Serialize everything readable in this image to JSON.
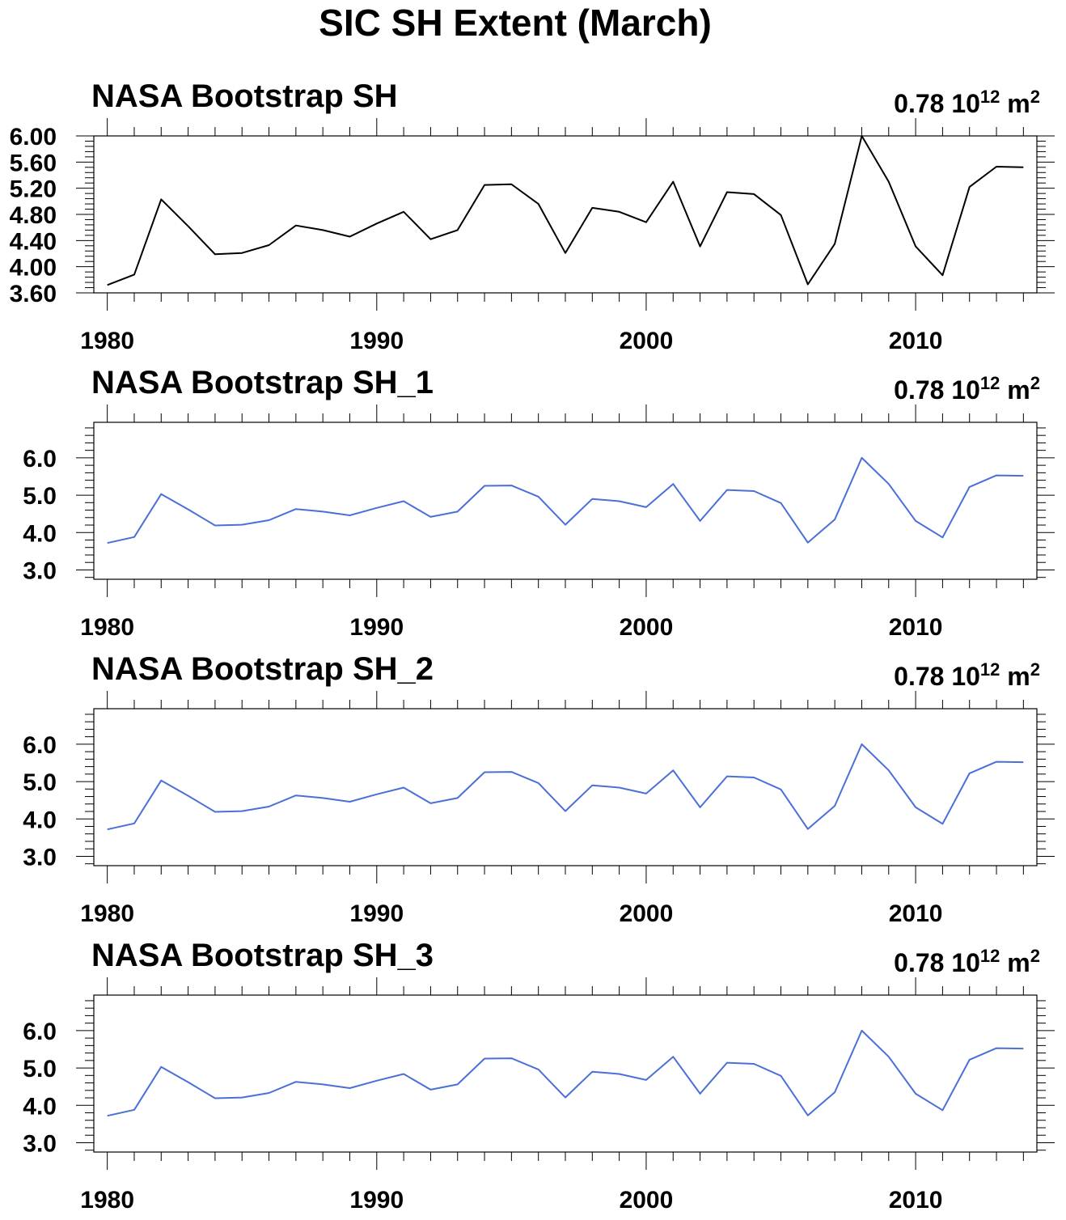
{
  "figure": {
    "title": "SIC SH Extent (March)"
  },
  "chart_data": [
    {
      "type": "line",
      "title": "NASA Bootstrap SH",
      "annotation": {
        "value": "0.78 10",
        "exponent": "12",
        "unit": "m",
        "unit_exponent": "2"
      },
      "xlabel": "",
      "ylabel": "",
      "xlim": [
        1979.5,
        2014.5
      ],
      "ylim": [
        3.6,
        6.0
      ],
      "yticks": [
        "6.00",
        "5.60",
        "5.20",
        "4.80",
        "4.40",
        "4.00",
        "3.60"
      ],
      "xticks": [
        "1980",
        "1990",
        "2000",
        "2010"
      ],
      "grid": false,
      "color": "#000000",
      "x": [
        1980,
        1981,
        1982,
        1983,
        1984,
        1985,
        1986,
        1987,
        1988,
        1989,
        1990,
        1991,
        1992,
        1993,
        1994,
        1995,
        1996,
        1997,
        1998,
        1999,
        2000,
        2001,
        2002,
        2003,
        2004,
        2005,
        2006,
        2007,
        2008,
        2009,
        2010,
        2011,
        2012,
        2013,
        2014
      ],
      "values": [
        3.72,
        3.88,
        5.03,
        4.62,
        4.19,
        4.21,
        4.33,
        4.63,
        4.56,
        4.46,
        4.66,
        4.84,
        4.42,
        4.56,
        5.25,
        5.26,
        4.96,
        4.21,
        4.9,
        4.84,
        4.68,
        5.3,
        4.31,
        5.14,
        5.11,
        4.79,
        3.73,
        4.35,
        6.0,
        5.3,
        4.31,
        3.87,
        5.22,
        5.53,
        5.52
      ]
    },
    {
      "type": "line",
      "title": "NASA Bootstrap SH_1",
      "annotation": {
        "value": "0.78 10",
        "exponent": "12",
        "unit": "m",
        "unit_exponent": "2"
      },
      "xlabel": "",
      "ylabel": "",
      "xlim": [
        1979.5,
        2014.5
      ],
      "ylim": [
        2.75,
        6.95
      ],
      "yticks": [
        "6.0",
        "5.0",
        "4.0",
        "3.0"
      ],
      "xticks": [
        "1980",
        "1990",
        "2000",
        "2010"
      ],
      "grid": false,
      "color": "#4a6fd8",
      "x": [
        1980,
        1981,
        1982,
        1983,
        1984,
        1985,
        1986,
        1987,
        1988,
        1989,
        1990,
        1991,
        1992,
        1993,
        1994,
        1995,
        1996,
        1997,
        1998,
        1999,
        2000,
        2001,
        2002,
        2003,
        2004,
        2005,
        2006,
        2007,
        2008,
        2009,
        2010,
        2011,
        2012,
        2013,
        2014
      ],
      "values": [
        3.72,
        3.88,
        5.03,
        4.62,
        4.19,
        4.21,
        4.33,
        4.63,
        4.56,
        4.46,
        4.66,
        4.84,
        4.42,
        4.56,
        5.25,
        5.26,
        4.96,
        4.21,
        4.9,
        4.84,
        4.68,
        5.3,
        4.31,
        5.14,
        5.11,
        4.79,
        3.73,
        4.35,
        6.0,
        5.3,
        4.31,
        3.87,
        5.22,
        5.53,
        5.52
      ]
    },
    {
      "type": "line",
      "title": "NASA Bootstrap SH_2",
      "annotation": {
        "value": "0.78 10",
        "exponent": "12",
        "unit": "m",
        "unit_exponent": "2"
      },
      "xlabel": "",
      "ylabel": "",
      "xlim": [
        1979.5,
        2014.5
      ],
      "ylim": [
        2.75,
        6.95
      ],
      "yticks": [
        "6.0",
        "5.0",
        "4.0",
        "3.0"
      ],
      "xticks": [
        "1980",
        "1990",
        "2000",
        "2010"
      ],
      "grid": false,
      "color": "#4a6fd8",
      "x": [
        1980,
        1981,
        1982,
        1983,
        1984,
        1985,
        1986,
        1987,
        1988,
        1989,
        1990,
        1991,
        1992,
        1993,
        1994,
        1995,
        1996,
        1997,
        1998,
        1999,
        2000,
        2001,
        2002,
        2003,
        2004,
        2005,
        2006,
        2007,
        2008,
        2009,
        2010,
        2011,
        2012,
        2013,
        2014
      ],
      "values": [
        3.72,
        3.88,
        5.03,
        4.62,
        4.19,
        4.21,
        4.33,
        4.63,
        4.56,
        4.46,
        4.66,
        4.84,
        4.42,
        4.56,
        5.25,
        5.26,
        4.96,
        4.21,
        4.9,
        4.84,
        4.68,
        5.3,
        4.31,
        5.14,
        5.11,
        4.79,
        3.73,
        4.35,
        6.0,
        5.3,
        4.31,
        3.87,
        5.22,
        5.53,
        5.52
      ]
    },
    {
      "type": "line",
      "title": "NASA Bootstrap SH_3",
      "annotation": {
        "value": "0.78 10",
        "exponent": "12",
        "unit": "m",
        "unit_exponent": "2"
      },
      "xlabel": "",
      "ylabel": "",
      "xlim": [
        1979.5,
        2014.5
      ],
      "ylim": [
        2.75,
        6.95
      ],
      "yticks": [
        "6.0",
        "5.0",
        "4.0",
        "3.0"
      ],
      "xticks": [
        "1980",
        "1990",
        "2000",
        "2010"
      ],
      "grid": false,
      "color": "#4a6fd8",
      "x": [
        1980,
        1981,
        1982,
        1983,
        1984,
        1985,
        1986,
        1987,
        1988,
        1989,
        1990,
        1991,
        1992,
        1993,
        1994,
        1995,
        1996,
        1997,
        1998,
        1999,
        2000,
        2001,
        2002,
        2003,
        2004,
        2005,
        2006,
        2007,
        2008,
        2009,
        2010,
        2011,
        2012,
        2013,
        2014
      ],
      "values": [
        3.72,
        3.88,
        5.03,
        4.62,
        4.19,
        4.21,
        4.33,
        4.63,
        4.56,
        4.46,
        4.66,
        4.84,
        4.42,
        4.56,
        5.25,
        5.26,
        4.96,
        4.21,
        4.9,
        4.84,
        4.68,
        5.3,
        4.31,
        5.14,
        5.11,
        4.79,
        3.73,
        4.35,
        6.0,
        5.3,
        4.31,
        3.87,
        5.22,
        5.53,
        5.52
      ]
    }
  ]
}
